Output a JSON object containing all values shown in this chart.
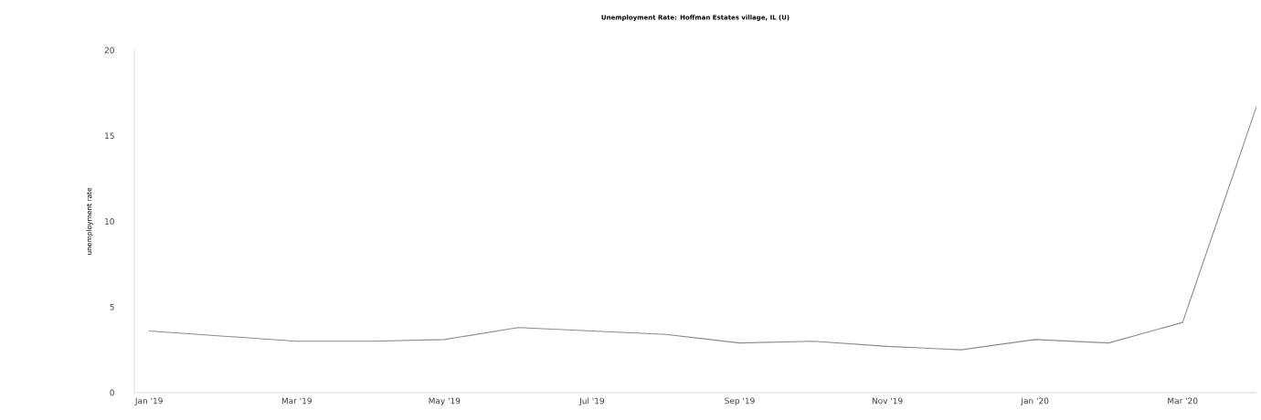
{
  "chart_data": {
    "type": "line",
    "title": "Unemployment Rate: Hoffman Estates village, IL (U)",
    "ylabel": "unemployment rate",
    "x": [
      "2019-01",
      "2019-02",
      "2019-03",
      "2019-04",
      "2019-05",
      "2019-06",
      "2019-07",
      "2019-08",
      "2019-09",
      "2019-10",
      "2019-11",
      "2019-12",
      "2020-01",
      "2020-02",
      "2020-03",
      "2020-04"
    ],
    "series": [
      {
        "color": "#8c8c8c",
        "values": [
          3.6,
          3.3,
          3.0,
          3.0,
          3.1,
          3.8,
          3.6,
          3.4,
          2.9,
          3.0,
          2.7,
          2.5,
          3.1,
          2.9,
          4.1,
          16.7
        ]
      }
    ],
    "xlim": [
      "2018-12-25",
      "2020-04"
    ],
    "ylim": [
      0,
      20
    ],
    "yticks": [
      0,
      5,
      10,
      15,
      20
    ],
    "xticks": [
      {
        "value": "2019-01",
        "label": "Jan '19"
      },
      {
        "value": "2019-03",
        "label": "Mar '19"
      },
      {
        "value": "2019-05",
        "label": "May '19"
      },
      {
        "value": "2019-07",
        "label": "Jul '19"
      },
      {
        "value": "2019-09",
        "label": "Sep '19"
      },
      {
        "value": "2019-11",
        "label": "Nov '19"
      },
      {
        "value": "2020-01",
        "label": "Jan '20"
      },
      {
        "value": "2020-03",
        "label": "Mar '20"
      }
    ],
    "grid": false,
    "marker": "none",
    "line_style": "solid"
  }
}
